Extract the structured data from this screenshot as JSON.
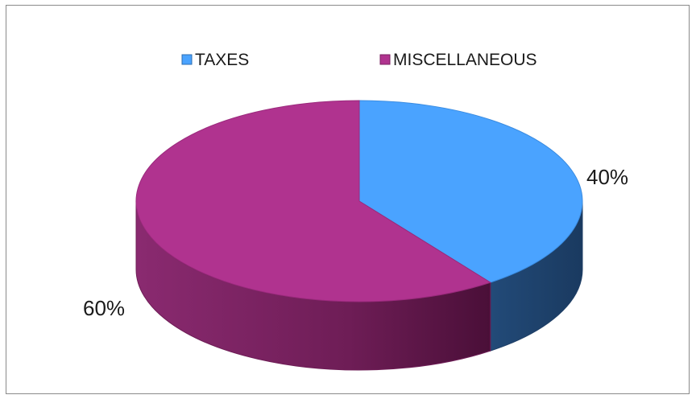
{
  "chart_data": {
    "type": "pie",
    "title": "",
    "categories": [
      "TAXES",
      "MISCELLANEOUS"
    ],
    "values": [
      40,
      60
    ],
    "data_labels": [
      "40%",
      "60%"
    ],
    "colors": [
      "#4aa3ff",
      "#b0338f"
    ],
    "side_colors": [
      "#1f3f66",
      "#6e1d56"
    ],
    "style": "3d",
    "legend": {
      "position": "top",
      "entries": [
        "TAXES",
        "MISCELLANEOUS"
      ]
    }
  }
}
